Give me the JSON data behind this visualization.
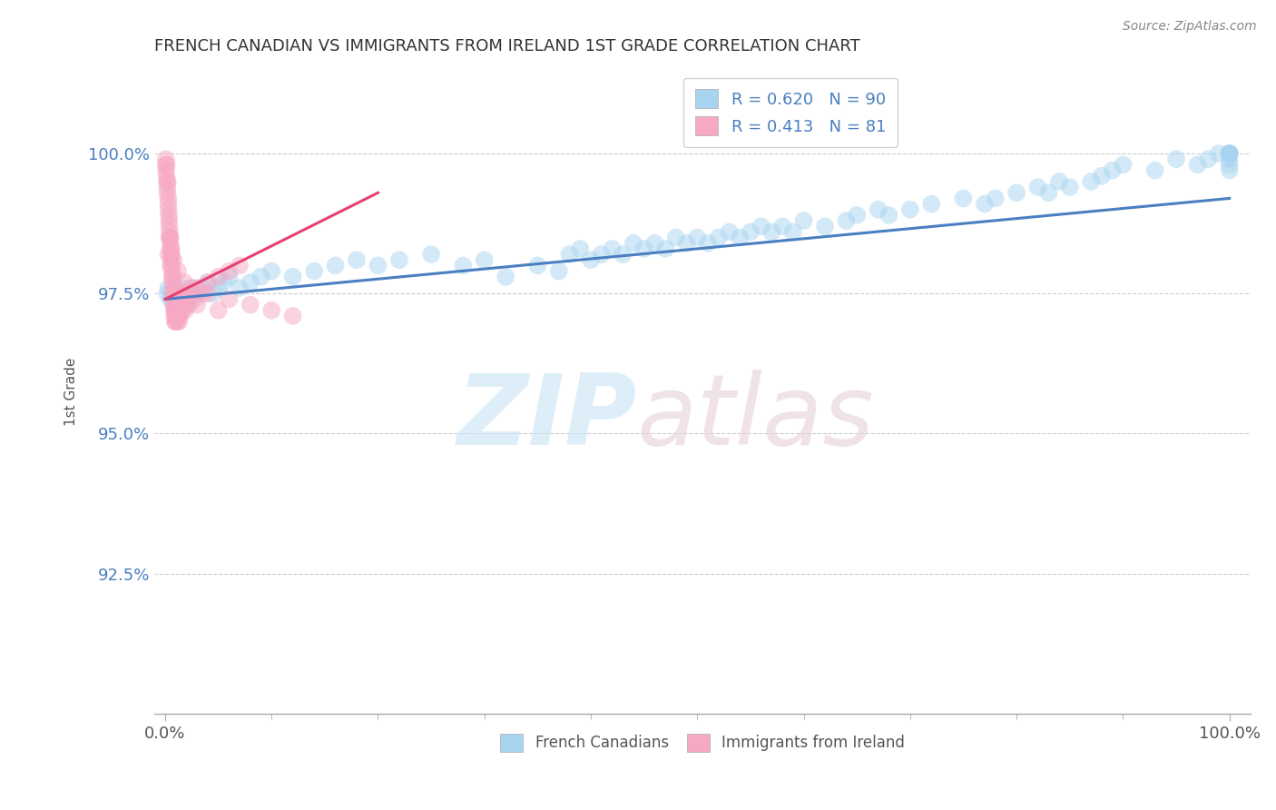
{
  "title": "FRENCH CANADIAN VS IMMIGRANTS FROM IRELAND 1ST GRADE CORRELATION CHART",
  "source_text": "Source: ZipAtlas.com",
  "ylabel": "1st Grade",
  "xlim": [
    -1.0,
    102.0
  ],
  "ylim": [
    90.0,
    101.5
  ],
  "yticks": [
    92.5,
    95.0,
    97.5,
    100.0
  ],
  "xticks": [
    0.0,
    100.0
  ],
  "xticklabels": [
    "0.0%",
    "100.0%"
  ],
  "yticklabels": [
    "92.5%",
    "95.0%",
    "97.5%",
    "100.0%"
  ],
  "blue_color": "#a8d4f0",
  "pink_color": "#f7a8c4",
  "blue_line_color": "#4a7fc1",
  "pink_line_color": "#e84070",
  "blue_R": 0.62,
  "blue_N": 90,
  "pink_R": 0.413,
  "pink_N": 81,
  "legend_label_blue": "French Canadians",
  "legend_label_pink": "Immigrants from Ireland",
  "blue_scatter_x": [
    0.2,
    0.3,
    0.5,
    0.6,
    0.8,
    1.0,
    1.2,
    1.5,
    1.8,
    2.0,
    2.3,
    2.6,
    3.0,
    3.5,
    4.0,
    4.5,
    5.0,
    5.5,
    6.0,
    7.0,
    8.0,
    9.0,
    10.0,
    12.0,
    14.0,
    16.0,
    18.0,
    20.0,
    22.0,
    25.0,
    28.0,
    30.0,
    32.0,
    35.0,
    37.0,
    38.0,
    39.0,
    40.0,
    41.0,
    42.0,
    43.0,
    44.0,
    45.0,
    46.0,
    47.0,
    48.0,
    49.0,
    50.0,
    51.0,
    52.0,
    53.0,
    54.0,
    55.0,
    56.0,
    57.0,
    58.0,
    59.0,
    60.0,
    62.0,
    64.0,
    65.0,
    67.0,
    68.0,
    70.0,
    72.0,
    75.0,
    77.0,
    78.0,
    80.0,
    82.0,
    83.0,
    84.0,
    85.0,
    87.0,
    88.0,
    89.0,
    90.0,
    93.0,
    95.0,
    97.0,
    98.0,
    99.0,
    100.0,
    100.0,
    100.0,
    100.0,
    100.0,
    100.0,
    100.0,
    100.0
  ],
  "blue_scatter_y": [
    97.5,
    97.6,
    97.4,
    97.5,
    97.3,
    97.5,
    97.4,
    97.6,
    97.3,
    97.5,
    97.4,
    97.6,
    97.5,
    97.6,
    97.7,
    97.5,
    97.6,
    97.7,
    97.8,
    97.6,
    97.7,
    97.8,
    97.9,
    97.8,
    97.9,
    98.0,
    98.1,
    98.0,
    98.1,
    98.2,
    98.0,
    98.1,
    97.8,
    98.0,
    97.9,
    98.2,
    98.3,
    98.1,
    98.2,
    98.3,
    98.2,
    98.4,
    98.3,
    98.4,
    98.3,
    98.5,
    98.4,
    98.5,
    98.4,
    98.5,
    98.6,
    98.5,
    98.6,
    98.7,
    98.6,
    98.7,
    98.6,
    98.8,
    98.7,
    98.8,
    98.9,
    99.0,
    98.9,
    99.0,
    99.1,
    99.2,
    99.1,
    99.2,
    99.3,
    99.4,
    99.3,
    99.5,
    99.4,
    99.5,
    99.6,
    99.7,
    99.8,
    99.7,
    99.9,
    99.8,
    99.9,
    100.0,
    100.0,
    100.0,
    100.0,
    100.0,
    99.9,
    100.0,
    99.8,
    99.7
  ],
  "pink_scatter_x": [
    0.05,
    0.08,
    0.1,
    0.12,
    0.15,
    0.18,
    0.2,
    0.22,
    0.25,
    0.28,
    0.3,
    0.32,
    0.35,
    0.38,
    0.4,
    0.42,
    0.45,
    0.48,
    0.5,
    0.52,
    0.55,
    0.58,
    0.6,
    0.62,
    0.65,
    0.68,
    0.7,
    0.72,
    0.75,
    0.78,
    0.8,
    0.82,
    0.85,
    0.88,
    0.9,
    0.92,
    0.95,
    0.98,
    1.0,
    1.05,
    1.1,
    1.15,
    1.2,
    1.25,
    1.3,
    1.35,
    1.4,
    1.5,
    1.6,
    1.7,
    1.8,
    1.9,
    2.0,
    2.2,
    2.5,
    2.8,
    3.0,
    3.5,
    4.0,
    5.0,
    6.0,
    7.0,
    0.3,
    0.5,
    0.7,
    1.0,
    1.5,
    2.0,
    3.0,
    5.0,
    0.4,
    0.6,
    0.8,
    1.2,
    1.8,
    2.5,
    4.0,
    6.0,
    8.0,
    10.0,
    12.0
  ],
  "pink_scatter_y": [
    99.8,
    99.9,
    99.7,
    99.6,
    99.8,
    99.5,
    99.4,
    99.3,
    99.5,
    99.2,
    99.1,
    99.0,
    98.9,
    98.8,
    98.7,
    98.6,
    98.5,
    98.4,
    98.5,
    98.3,
    98.2,
    98.1,
    98.2,
    98.0,
    97.9,
    97.8,
    97.7,
    97.6,
    97.5,
    97.4,
    97.5,
    97.3,
    97.2,
    97.1,
    97.2,
    97.0,
    97.1,
    97.0,
    97.2,
    97.3,
    97.1,
    97.0,
    97.2,
    97.1,
    97.0,
    97.2,
    97.1,
    97.3,
    97.2,
    97.4,
    97.3,
    97.2,
    97.4,
    97.3,
    97.5,
    97.4,
    97.6,
    97.5,
    97.7,
    97.8,
    97.9,
    98.0,
    98.2,
    98.0,
    97.8,
    97.6,
    97.5,
    97.4,
    97.3,
    97.2,
    98.5,
    98.3,
    98.1,
    97.9,
    97.7,
    97.6,
    97.5,
    97.4,
    97.3,
    97.2,
    97.1
  ],
  "blue_trend_x0": 0.0,
  "blue_trend_y0": 97.4,
  "blue_trend_x1": 100.0,
  "blue_trend_y1": 99.2,
  "pink_trend_x0": 0.0,
  "pink_trend_y0": 97.4,
  "pink_trend_x1": 20.0,
  "pink_trend_y1": 99.3
}
